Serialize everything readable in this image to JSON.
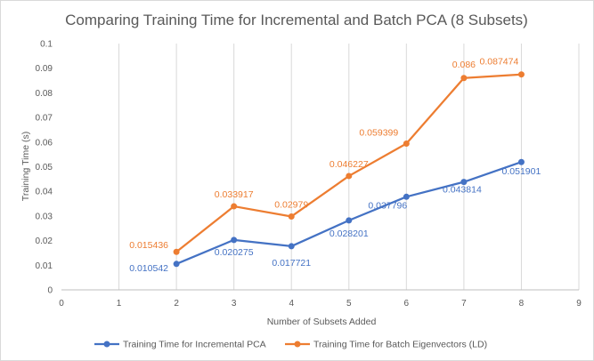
{
  "chart_data": {
    "type": "line",
    "title": "Comparing Training Time for Incremental and Batch PCA (8 Subsets)",
    "xlabel": "Number  of Subsets Added",
    "ylabel": "Training Time (s)",
    "xlim": [
      0,
      9
    ],
    "ylim": [
      0,
      0.1
    ],
    "x_ticks": [
      "0",
      "1",
      "2",
      "3",
      "4",
      "5",
      "6",
      "7",
      "8",
      "9"
    ],
    "y_ticks": [
      "0",
      "0.01",
      "0.02",
      "0.03",
      "0.04",
      "0.05",
      "0.06",
      "0.07",
      "0.08",
      "0.09",
      "0.1"
    ],
    "grid": "vertical",
    "legend_position": "bottom",
    "series": [
      {
        "name": "Training Time for Incremental PCA",
        "color": "#4472c4",
        "x": [
          2,
          3,
          4,
          5,
          6,
          7,
          8
        ],
        "values": [
          0.010542,
          0.020275,
          0.017721,
          0.028201,
          0.037796,
          0.043814,
          0.051901
        ],
        "labels": [
          "0.010542",
          "0.020275",
          "0.017721",
          "0.028201",
          "0.037796",
          "0.043814",
          "0.051901"
        ]
      },
      {
        "name": "Training Time for Batch Eigenvectors (LD)",
        "color": "#ed7d31",
        "x": [
          2,
          3,
          4,
          5,
          6,
          7,
          8
        ],
        "values": [
          0.015436,
          0.033917,
          0.02979,
          0.046227,
          0.059399,
          0.086,
          0.087474
        ],
        "labels": [
          "0.015436",
          "0.033917",
          "0.02979",
          "0.046227",
          "0.059399",
          "0.086",
          "0.087474"
        ]
      }
    ]
  }
}
